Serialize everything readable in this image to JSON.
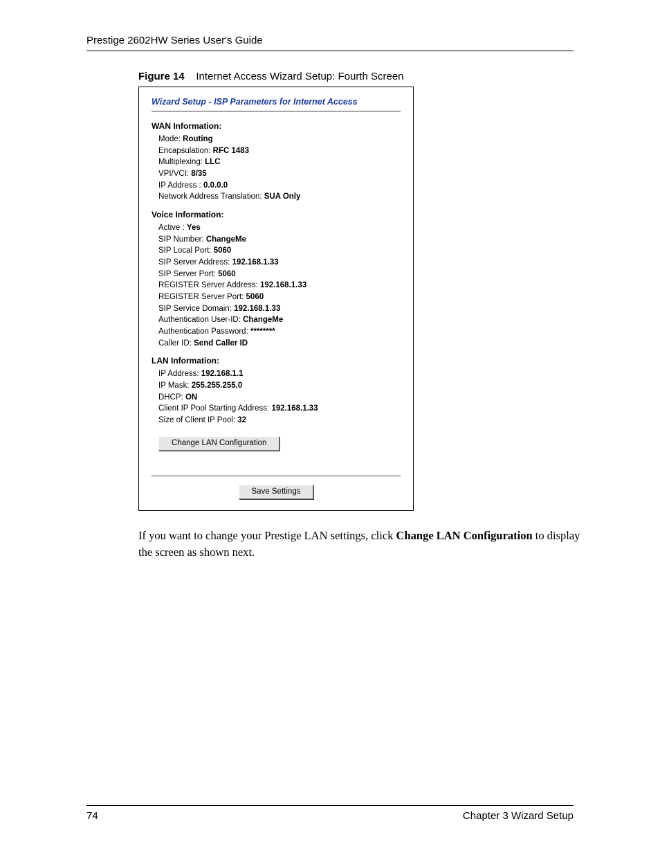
{
  "header": {
    "running": "Prestige 2602HW Series User's Guide"
  },
  "figure": {
    "label": "Figure 14",
    "caption": "Internet Access Wizard Setup: Fourth Screen"
  },
  "wizard": {
    "title": "Wizard Setup - ISP Parameters for Internet Access",
    "wan": {
      "heading": "WAN Information:",
      "mode_label": "Mode: ",
      "mode_value": "Routing",
      "encap_label": "Encapsulation: ",
      "encap_value": "RFC 1483",
      "mux_label": "Multiplexing: ",
      "mux_value": "LLC",
      "vpivci_label": "VPI/VCI: ",
      "vpivci_value": "8/35",
      "ip_label": "IP Address : ",
      "ip_value": "0.0.0.0",
      "nat_label": "Network Address Translation: ",
      "nat_value": "SUA Only"
    },
    "voice": {
      "heading": "Voice Information:",
      "active_label": "Active : ",
      "active_value": "Yes",
      "sipnum_label": "SIP Number: ",
      "sipnum_value": "ChangeMe",
      "siplocal_label": "SIP Local Port: ",
      "siplocal_value": "5060",
      "sipsrvaddr_label": "SIP Server Address: ",
      "sipsrvaddr_value": "192.168.1.33",
      "sipsrvport_label": "SIP Server Port: ",
      "sipsrvport_value": "5060",
      "regaddr_label": "REGISTER Server Address: ",
      "regaddr_value": "192.168.1.33",
      "regport_label": "REGISTER Server Port: ",
      "regport_value": "5060",
      "sipdomain_label": "SIP Service Domain: ",
      "sipdomain_value": "192.168.1.33",
      "authuser_label": "Authentication User-ID: ",
      "authuser_value": "ChangeMe",
      "authpass_label": "Authentication Password: ",
      "authpass_value": "********",
      "callerid_label": "Caller ID: ",
      "callerid_value": "Send Caller ID"
    },
    "lan": {
      "heading": "LAN Information:",
      "ip_label": "IP Address: ",
      "ip_value": "192.168.1.1",
      "mask_label": "IP Mask: ",
      "mask_value": "255.255.255.0",
      "dhcp_label": "DHCP: ",
      "dhcp_value": "ON",
      "pool_label": "Client IP Pool Starting Address: ",
      "pool_value": "192.168.1.33",
      "size_label": "Size of Client IP Pool: ",
      "size_value": "32"
    },
    "buttons": {
      "change_lan": "Change LAN Configuration",
      "save": "Save Settings"
    }
  },
  "bodytext": {
    "t1": "If you want to change your Prestige LAN settings, click ",
    "t2": "Change LAN Configuration",
    "t3": " to display the screen as shown next."
  },
  "footer": {
    "page": "74",
    "chapter": "Chapter 3 Wizard Setup"
  }
}
